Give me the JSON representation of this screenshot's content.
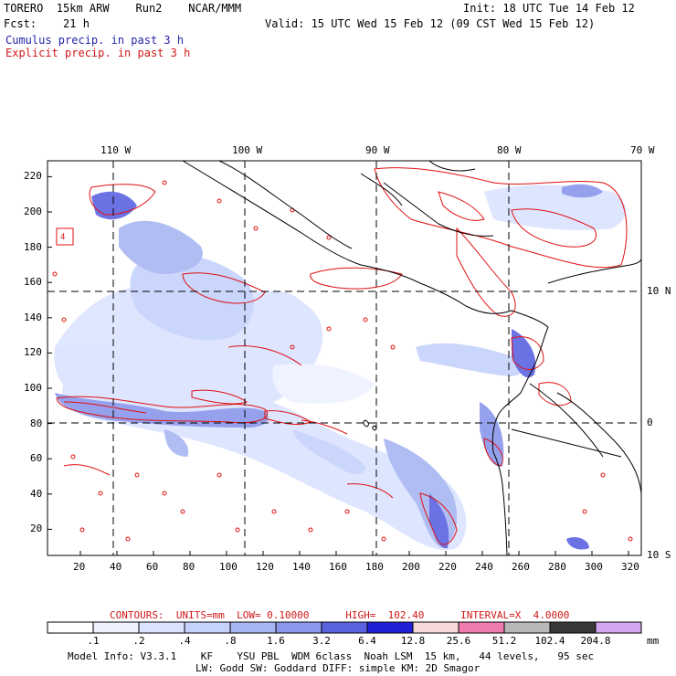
{
  "header": {
    "model": "TORERO  15km ARW    Run2    NCAR/MMM",
    "init": "Init: 18 UTC Tue 14 Feb 12",
    "fcst": "Fcst:    21 h",
    "valid": "Valid: 15 UTC Wed 15 Feb 12 (09 CST Wed 15 Feb 12)",
    "legend_cumulus": "Cumulus precip. in past 3 h",
    "legend_explicit": "Explicit precip. in past 3 h"
  },
  "map": {
    "lon_labels": [
      "110 W",
      "100 W",
      "90 W",
      "80 W",
      "70 W"
    ],
    "lat_labels": [
      "10 N",
      "0",
      "10 S"
    ],
    "x_ticks": [
      "20",
      "40",
      "60",
      "80",
      "100",
      "120",
      "140",
      "160",
      "180",
      "200",
      "220",
      "240",
      "260",
      "280",
      "300",
      "320"
    ],
    "y_ticks": [
      "220",
      "200",
      "180",
      "160",
      "140",
      "120",
      "100",
      "80",
      "60",
      "40",
      "20"
    ],
    "box_label": "4"
  },
  "contours": {
    "title": "CONTOURS:  UNITS=mm  LOW= 0.10000      HIGH=  102.40      INTERVAL=X  4.0000"
  },
  "colorbar": {
    "labels": [
      ".1",
      ".2",
      ".4",
      ".8",
      "1.6",
      "3.2",
      "6.4",
      "12.8",
      "25.6",
      "51.2",
      "102.4",
      "204.8"
    ],
    "unit": "mm",
    "colors": [
      "#ffffff",
      "#eef2ff",
      "#dbe3ff",
      "#c5d2fb",
      "#a7b6f2",
      "#8a97ea",
      "#5c63e0",
      "#1f1fd6",
      "#f6d8d8",
      "#ee7ab0",
      "#b8b8b8",
      "#383838",
      "#d4a6f0"
    ]
  },
  "footer": {
    "line1": "Model Info: V3.3.1    KF    YSU PBL  WDM 6class  Noah LSM  15 km,   44 levels,   95 sec",
    "line2": "LW: Godd SW: Goddard DIFF: simple KM: 2D Smagor"
  }
}
